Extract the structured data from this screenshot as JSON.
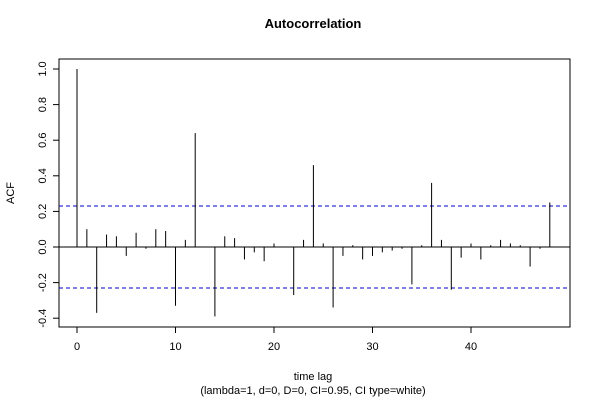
{
  "chart_data": {
    "type": "bar",
    "title": "Autocorrelation",
    "xlabel": "time lag",
    "subtitle": "(lambda=1, d=0, D=0, CI=0.95, CI type=white)",
    "ylabel": "ACF",
    "xlim": [
      0,
      48
    ],
    "ylim": [
      -0.4,
      1.0
    ],
    "x_ticks": [
      0,
      10,
      20,
      30,
      40
    ],
    "y_ticks": [
      -0.4,
      -0.2,
      0.0,
      0.2,
      0.4,
      0.6,
      0.8,
      1.0
    ],
    "y_tick_labels": [
      "-0.4",
      "-0.2",
      "0.0",
      "0.2",
      "0.4",
      "0.6",
      "0.8",
      "1.0"
    ],
    "confidence_interval": [
      -0.23,
      0.23
    ],
    "lags": [
      0,
      1,
      2,
      3,
      4,
      5,
      6,
      7,
      8,
      9,
      10,
      11,
      12,
      13,
      14,
      15,
      16,
      17,
      18,
      19,
      20,
      21,
      22,
      23,
      24,
      25,
      26,
      27,
      28,
      29,
      30,
      31,
      32,
      33,
      34,
      35,
      36,
      37,
      38,
      39,
      40,
      41,
      42,
      43,
      44,
      45,
      46,
      47,
      48
    ],
    "values": [
      1.0,
      0.1,
      -0.37,
      0.07,
      0.06,
      -0.05,
      0.08,
      -0.01,
      0.1,
      0.09,
      -0.33,
      0.04,
      0.64,
      0.0,
      -0.39,
      0.06,
      0.05,
      -0.07,
      -0.03,
      -0.08,
      0.02,
      0.0,
      -0.27,
      0.04,
      0.46,
      0.02,
      -0.34,
      -0.05,
      0.01,
      -0.07,
      -0.05,
      -0.03,
      -0.02,
      -0.01,
      -0.21,
      0.01,
      0.36,
      0.04,
      -0.24,
      -0.06,
      0.02,
      -0.07,
      0.01,
      0.04,
      0.02,
      0.01,
      -0.11,
      -0.01,
      0.25
    ],
    "colors": {
      "bars": "#000000",
      "ci_line": "#0000cc",
      "zero_line": "#000000"
    }
  }
}
